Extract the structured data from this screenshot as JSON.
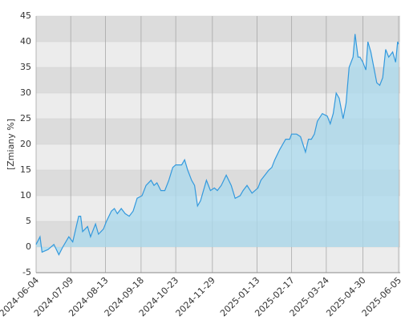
{
  "chart_data": {
    "type": "area",
    "y_label": "[Zmiany %]",
    "ylim": [
      -5,
      45
    ],
    "yticks": [
      -5,
      0,
      5,
      10,
      15,
      20,
      25,
      30,
      35,
      40,
      45
    ],
    "xlim": [
      "2024-06-04",
      "2025-06-05"
    ],
    "xticks": [
      "2024-06-04",
      "2024-07-09",
      "2024-08-13",
      "2024-09-18",
      "2024-10-23",
      "2024-11-29",
      "2025-01-13",
      "2025-02-17",
      "2025-03-24",
      "2025-04-30",
      "2025-06-05"
    ],
    "grid": true,
    "x": [
      "2024-06-04",
      "2024-06-08",
      "2024-06-10",
      "2024-06-16",
      "2024-06-22",
      "2024-06-27",
      "2024-07-01",
      "2024-07-07",
      "2024-07-11",
      "2024-07-17",
      "2024-07-19",
      "2024-07-21",
      "2024-07-26",
      "2024-07-29",
      "2024-08-03",
      "2024-08-06",
      "2024-08-11",
      "2024-08-14",
      "2024-08-19",
      "2024-08-22",
      "2024-08-25",
      "2024-08-29",
      "2024-09-02",
      "2024-09-06",
      "2024-09-10",
      "2024-09-14",
      "2024-09-19",
      "2024-09-23",
      "2024-09-28",
      "2024-10-01",
      "2024-10-04",
      "2024-10-08",
      "2024-10-12",
      "2024-10-16",
      "2024-10-20",
      "2024-10-23",
      "2024-10-29",
      "2024-11-01",
      "2024-11-04",
      "2024-11-08",
      "2024-11-11",
      "2024-11-14",
      "2024-11-17",
      "2024-11-20",
      "2024-11-23",
      "2024-11-27",
      "2024-12-01",
      "2024-12-04",
      "2024-12-08",
      "2024-12-13",
      "2024-12-18",
      "2024-12-22",
      "2024-12-27",
      "2024-12-30",
      "2025-01-03",
      "2025-01-08",
      "2025-01-14",
      "2025-01-17",
      "2025-01-21",
      "2025-01-25",
      "2025-01-28",
      "2025-01-31",
      "2025-02-05",
      "2025-02-11",
      "2025-02-15",
      "2025-02-17",
      "2025-02-22",
      "2025-02-26",
      "2025-03-03",
      "2025-03-06",
      "2025-03-09",
      "2025-03-12",
      "2025-03-15",
      "2025-03-20",
      "2025-03-25",
      "2025-03-28",
      "2025-03-31",
      "2025-04-03",
      "2025-04-06",
      "2025-04-10",
      "2025-04-13",
      "2025-04-16",
      "2025-04-20",
      "2025-04-22",
      "2025-04-25",
      "2025-04-27",
      "2025-04-30",
      "2025-05-03",
      "2025-05-05",
      "2025-05-08",
      "2025-05-11",
      "2025-05-14",
      "2025-05-17",
      "2025-05-20",
      "2025-05-23",
      "2025-05-26",
      "2025-05-30",
      "2025-06-02",
      "2025-06-04",
      "2025-06-05"
    ],
    "series": [
      {
        "color": "#3399dd",
        "fill": "#a9d9ee",
        "values": [
          0.5,
          2,
          -1,
          -0.5,
          0.5,
          -1.5,
          0,
          2,
          1,
          6,
          6,
          3,
          4,
          2,
          4.5,
          2.5,
          3.5,
          5,
          7,
          7.5,
          6.5,
          7.5,
          6.5,
          6,
          7,
          9.5,
          10,
          12,
          13,
          12,
          12.5,
          11,
          11,
          13,
          15.5,
          16,
          16,
          17,
          15,
          13,
          12,
          8,
          9,
          11,
          13,
          11,
          11.5,
          11,
          12,
          14,
          12,
          9.5,
          10,
          11,
          12,
          10.5,
          11.5,
          13,
          14,
          15,
          15.5,
          17,
          19,
          21,
          21,
          22,
          22,
          21.5,
          18.5,
          21,
          21,
          22,
          24.5,
          26,
          25.5,
          24,
          26,
          30,
          29,
          25,
          28,
          35,
          37,
          41.5,
          37,
          37,
          36,
          34.5,
          40,
          38,
          35,
          32,
          31.5,
          33,
          38.5,
          37,
          38,
          36,
          40,
          39.5
        ]
      }
    ]
  }
}
